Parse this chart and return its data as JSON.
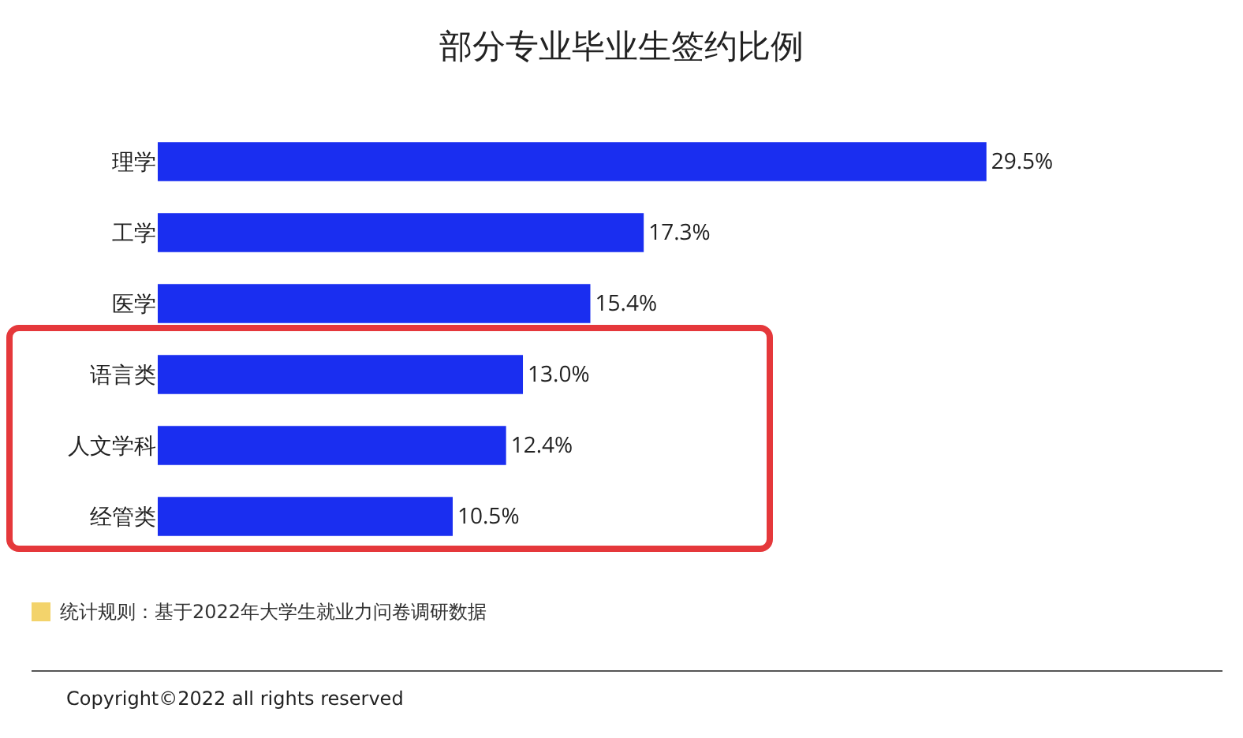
{
  "chart_data": {
    "type": "bar",
    "orientation": "horizontal",
    "title": "部分专业毕业生签约比例",
    "categories": [
      "理学",
      "工学",
      "医学",
      "语言类",
      "人文学科",
      "经管类"
    ],
    "values": [
      29.5,
      17.3,
      15.4,
      13.0,
      12.4,
      10.5
    ],
    "value_labels": [
      "29.5%",
      "17.3%",
      "15.4%",
      "13.0%",
      "12.4%",
      "10.5%"
    ],
    "color": "#1a2ef0",
    "grid": false,
    "tick_labels": "y",
    "annotations": [
      "统计规则：基于2022年大学生就业力问卷调研数据",
      "Copyright©2022 all rights reserved"
    ]
  }
}
